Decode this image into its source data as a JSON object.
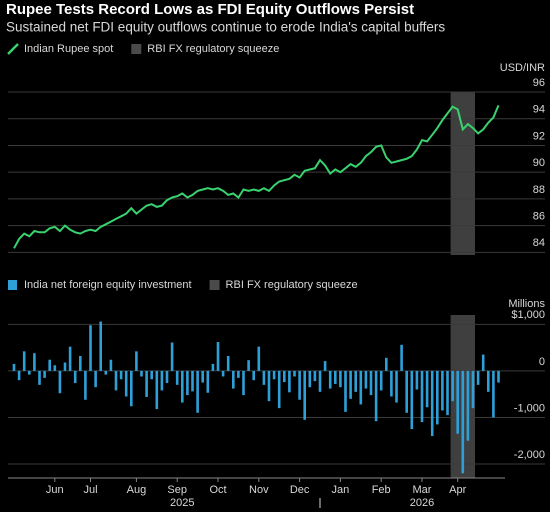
{
  "title": "Rupee Tests Record Lows as FDI Equity Outflows Persist",
  "subtitle": "Sustained net FDI equity outflows continue to erode India's capital buffers",
  "chart_data": [
    {
      "type": "line",
      "y_label": "USD/INR",
      "series": [
        {
          "name": "Indian Rupee spot",
          "color": "#3ad26f",
          "values": [
            84.3,
            85.0,
            85.4,
            85.2,
            85.6,
            85.5,
            85.5,
            85.8,
            85.9,
            85.6,
            86.0,
            85.7,
            85.5,
            85.4,
            85.6,
            85.7,
            85.6,
            85.9,
            86.1,
            86.3,
            86.5,
            86.7,
            86.9,
            87.3,
            86.9,
            87.2,
            87.5,
            87.6,
            87.4,
            87.5,
            87.9,
            88.1,
            88.2,
            88.4,
            88.1,
            88.3,
            88.6,
            88.7,
            88.8,
            88.7,
            88.8,
            88.6,
            88.3,
            88.4,
            88.1,
            88.7,
            88.6,
            88.7,
            88.6,
            88.8,
            88.6,
            89.0,
            89.3,
            89.4,
            89.5,
            89.8,
            89.6,
            90.1,
            90.2,
            90.3,
            90.9,
            90.5,
            89.9,
            90.2,
            90.0,
            90.3,
            90.6,
            90.4,
            90.7,
            91.2,
            91.5,
            91.9,
            92.0,
            91.1,
            90.7,
            90.8,
            90.9,
            91.0,
            91.2,
            91.7,
            92.4,
            92.3,
            92.8,
            93.3,
            93.9,
            94.4,
            94.9,
            94.7,
            93.2,
            93.6,
            93.3,
            92.9,
            93.2,
            93.7,
            94.1,
            95.0
          ]
        }
      ],
      "shaded_span": {
        "name": "RBI FX regulatory squeeze",
        "color": "#4a4a4a",
        "from_index": 86,
        "to_index": 90
      },
      "ylim": [
        83.8,
        96
      ],
      "yticks": [
        84,
        86,
        88,
        90,
        92,
        94,
        96
      ],
      "grid": true
    },
    {
      "type": "bar",
      "y_label": "Millions",
      "series": [
        {
          "name": "India net foreign equity investment",
          "color": "#2f9fd8",
          "values": [
            150,
            -200,
            420,
            -80,
            380,
            -300,
            -150,
            240,
            120,
            -480,
            180,
            520,
            -260,
            320,
            -620,
            980,
            -350,
            1060,
            -80,
            240,
            -420,
            -180,
            -550,
            -760,
            420,
            -120,
            -560,
            -180,
            -820,
            -420,
            -260,
            610,
            -300,
            -680,
            -520,
            -440,
            -900,
            -250,
            -470,
            150,
            620,
            -120,
            320,
            -380,
            -150,
            -520,
            230,
            -200,
            520,
            -300,
            -650,
            -180,
            -800,
            -240,
            -460,
            -120,
            -620,
            -1050,
            -350,
            -220,
            -450,
            210,
            -380,
            -280,
            -350,
            -880,
            -600,
            -450,
            -720,
            -380,
            -520,
            -1080,
            -420,
            280,
            -550,
            -680,
            560,
            -900,
            -1250,
            -400,
            -1100,
            -780,
            -1400,
            -1150,
            -850,
            -950,
            -650,
            -1350,
            -2200,
            -1500,
            -800,
            -300,
            350,
            -450,
            -1000,
            -250
          ]
        }
      ],
      "shaded_span": {
        "name": "RBI FX regulatory squeeze",
        "color": "#4a4a4a",
        "from_index": 86,
        "to_index": 90
      },
      "categories": [
        null,
        null,
        null,
        null,
        null,
        null,
        null,
        null,
        "Jun",
        null,
        null,
        null,
        null,
        null,
        null,
        "Jul",
        null,
        null,
        null,
        null,
        null,
        null,
        null,
        null,
        "Aug",
        null,
        null,
        null,
        null,
        null,
        null,
        null,
        "Sep",
        null,
        null,
        null,
        null,
        null,
        null,
        null,
        "Oct",
        null,
        null,
        null,
        null,
        null,
        null,
        null,
        "Nov",
        null,
        null,
        null,
        null,
        null,
        null,
        null,
        "Dec",
        null,
        null,
        null,
        null,
        null,
        null,
        null,
        "Jan",
        null,
        null,
        null,
        null,
        null,
        null,
        null,
        "Feb",
        null,
        null,
        null,
        null,
        null,
        null,
        null,
        "Mar",
        null,
        null,
        null,
        null,
        null,
        null,
        "Apr",
        null,
        null,
        null,
        null,
        null,
        null,
        null,
        null
      ],
      "years": [
        null,
        null,
        null,
        null,
        null,
        null,
        null,
        null,
        null,
        null,
        null,
        null,
        null,
        null,
        null,
        null,
        null,
        null,
        null,
        null,
        null,
        null,
        null,
        null,
        null,
        null,
        null,
        null,
        null,
        null,
        null,
        null,
        null,
        "2025",
        null,
        null,
        null,
        null,
        null,
        null,
        null,
        null,
        null,
        null,
        null,
        null,
        null,
        null,
        null,
        null,
        null,
        null,
        null,
        null,
        null,
        null,
        null,
        null,
        null,
        null,
        null,
        null,
        null,
        null,
        null,
        null,
        null,
        null,
        null,
        null,
        null,
        null,
        null,
        null,
        null,
        null,
        null,
        null,
        null,
        null,
        "2026",
        null,
        null,
        null,
        null,
        null,
        null,
        null,
        null,
        null,
        null,
        null,
        null,
        null,
        null,
        null
      ],
      "ylim": [
        -2300,
        1200
      ],
      "yticks": [
        {
          "value": 1000,
          "label": "$1,000"
        },
        0,
        {
          "value": -1000,
          "label": "-1,000"
        },
        {
          "value": -2000,
          "label": "-2,000"
        }
      ],
      "grid": true
    }
  ]
}
